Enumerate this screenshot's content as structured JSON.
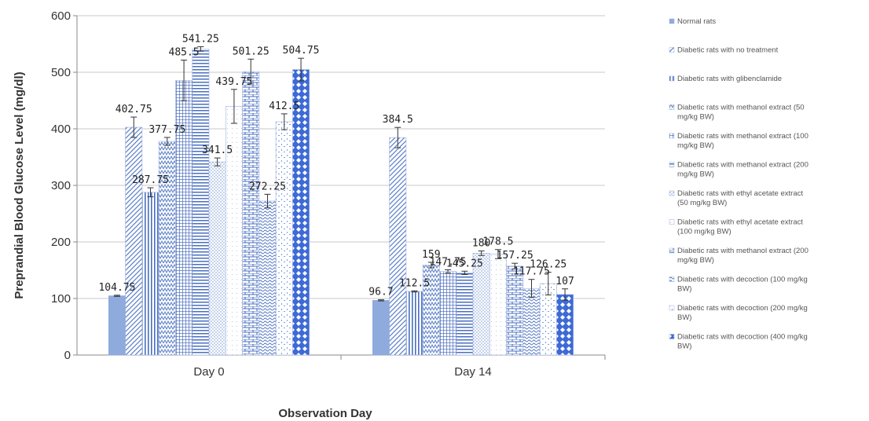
{
  "chart_data": {
    "type": "bar",
    "title": "",
    "xlabel": "Observation Day",
    "ylabel": "Preprandial Blood Glucose Level (mg/dl)",
    "ylim": [
      0,
      600
    ],
    "yticks": [
      0,
      100,
      200,
      300,
      400,
      500,
      600
    ],
    "grid": true,
    "legend_position": "right",
    "categories": [
      "Day 0",
      "Day 14"
    ],
    "series": [
      {
        "name": [
          "Normal rats"
        ],
        "values": [
          104.75,
          96.7
        ],
        "labels": [
          "104.75",
          "96.7"
        ],
        "errors": [
          1,
          1
        ],
        "color": "#8faadc",
        "pattern": "solid"
      },
      {
        "name": [
          "Diabetic rats with no treatment"
        ],
        "values": [
          402.75,
          384.5
        ],
        "labels": [
          "402.75",
          "384.5"
        ],
        "errors": [
          18,
          18
        ],
        "color": "#5b7fc7",
        "pattern": "diag-up"
      },
      {
        "name": [
          "Diabetic rats with glibenclamide"
        ],
        "values": [
          287.75,
          112.5
        ],
        "labels": [
          "287.75",
          "112.5"
        ],
        "errors": [
          8,
          1
        ],
        "color": "#5b7fc7",
        "pattern": "vert"
      },
      {
        "name": [
          "Diabetic rats with methanol extract (50",
          "mg/kg BW)"
        ],
        "values": [
          377.75,
          159
        ],
        "labels": [
          "377.75",
          "159"
        ],
        "errors": [
          7,
          5
        ],
        "color": "#5b7fc7",
        "pattern": "zigzag"
      },
      {
        "name": [
          "Diabetic rats with methanol extract (100",
          "mg/kg BW)"
        ],
        "values": [
          485.5,
          147.75
        ],
        "labels": [
          "485.5",
          "147.75"
        ],
        "errors": [
          36,
          3
        ],
        "color": "#5b7fc7",
        "pattern": "grid"
      },
      {
        "name": [
          "Diabetic rats with methanol extract (200",
          "mg/kg BW)"
        ],
        "values": [
          541.25,
          145.25
        ],
        "labels": [
          "541.25",
          "145.25"
        ],
        "errors": [
          4,
          3
        ],
        "color": "#5b7fc7",
        "pattern": "horiz"
      },
      {
        "name": [
          "Diabetic rats with ethyl acetate extract",
          "(50 mg/kg BW)"
        ],
        "values": [
          341.5,
          180
        ],
        "labels": [
          "341.5",
          "180"
        ],
        "errors": [
          7,
          4
        ],
        "color": "#8faadc",
        "pattern": "dots"
      },
      {
        "name": [
          "Diabetic rats with ethyl acetate extract",
          "(100 mg/kg BW)"
        ],
        "values": [
          439.75,
          178.5
        ],
        "labels": [
          "439.75",
          "178.5"
        ],
        "errors": [
          30,
          8
        ],
        "color": "#8faadc",
        "pattern": "sparse"
      },
      {
        "name": [
          "Diabetic rats with methanol extract (200",
          "mg/kg BW)"
        ],
        "values": [
          501.25,
          157.25
        ],
        "labels": [
          "501.25",
          "157.25"
        ],
        "errors": [
          22,
          5
        ],
        "color": "#5b7fc7",
        "pattern": "brick"
      },
      {
        "name": [
          "Diabetic rats with decoction (100 mg/kg",
          "BW)"
        ],
        "values": [
          272.25,
          117.75
        ],
        "labels": [
          "272.25",
          "117.75"
        ],
        "errors": [
          12,
          16
        ],
        "color": "#5b7fc7",
        "pattern": "wave"
      },
      {
        "name": [
          "Diabetic rats with decoction (200 mg/kg",
          "BW)"
        ],
        "values": [
          412.5,
          126.25
        ],
        "labels": [
          "412.5",
          "126.25"
        ],
        "errors": [
          14,
          20
        ],
        "color": "#8faadc",
        "pattern": "confetti"
      },
      {
        "name": [
          "Diabetic rats with decoction (400 mg/kg",
          "BW)"
        ],
        "values": [
          504.75,
          107
        ],
        "labels": [
          "504.75",
          "107"
        ],
        "errors": [
          20,
          10
        ],
        "color": "#3d6ad6",
        "pattern": "diamond"
      }
    ]
  }
}
